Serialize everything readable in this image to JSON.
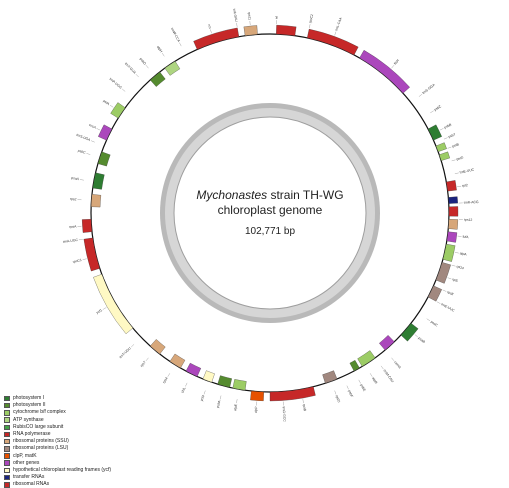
{
  "title_species": "Mychonastes",
  "title_strain": " strain TH-WG",
  "subtitle": "chloroplast genome",
  "genome_size": "102,771 bp",
  "colors": {
    "photosystem_i": "#2e7d32",
    "photosystem_ii": "#558b2f",
    "cytochrome": "#9ccc65",
    "atp": "#aed581",
    "rubisco": "#43a047",
    "rna_pol": "#c62828",
    "rps": "#d7a77a",
    "rpl": "#a1887f",
    "clpp": "#e65100",
    "other": "#ab47bc",
    "ycf": "#fff9c4",
    "trna": "#1a237e",
    "rrna": "#c62828"
  },
  "legend": [
    {
      "label": "photosystem I",
      "color": "#2e7d32"
    },
    {
      "label": "photosystem II",
      "color": "#558b2f"
    },
    {
      "label": "cytochrome b/f complex",
      "color": "#9ccc65"
    },
    {
      "label": "ATP synthase",
      "color": "#aed581"
    },
    {
      "label": "RubisCO large subunit",
      "color": "#43a047"
    },
    {
      "label": "RNA polymerase",
      "color": "#c62828"
    },
    {
      "label": "ribosomal proteins (SSU)",
      "color": "#d7a77a"
    },
    {
      "label": "ribosomal proteins (LSU)",
      "color": "#a1887f"
    },
    {
      "label": "clpP, matK",
      "color": "#e65100"
    },
    {
      "label": "other genes",
      "color": "#ab47bc"
    },
    {
      "label": "hypothetical chloroplast reading frames (ycf)",
      "color": "#fff9c4"
    },
    {
      "label": "transfer RNAs",
      "color": "#1a237e"
    },
    {
      "label": "ribosomal RNAs",
      "color": "#c62828"
    }
  ],
  "genes": [
    {
      "a1": 2,
      "a2": 8,
      "out": true,
      "cat": "rrna",
      "label": "rrl"
    },
    {
      "a1": 12,
      "a2": 28,
      "out": true,
      "cat": "rrna",
      "label": "rpoC2"
    },
    {
      "a1": 30,
      "a2": 48,
      "out": true,
      "cat": "other",
      "label": "ftsH"
    },
    {
      "a1": 62,
      "a2": 66,
      "out": true,
      "cat": "photosystem_i",
      "label": "psbB"
    },
    {
      "a1": 68,
      "a2": 70,
      "out": true,
      "cat": "cytochrome",
      "label": "petB"
    },
    {
      "a1": 71,
      "a2": 73,
      "out": true,
      "cat": "cytochrome",
      "label": "petD"
    },
    {
      "a1": 80,
      "a2": 83,
      "out": true,
      "cat": "rrna",
      "label": "rpl"
    },
    {
      "a1": 85,
      "a2": 87,
      "out": true,
      "cat": "trna",
      "label": "trnR"
    },
    {
      "a1": 88,
      "a2": 91,
      "out": true,
      "cat": "rrna",
      "label": "rrs"
    },
    {
      "a1": 92,
      "a2": 95,
      "out": true,
      "cat": "rps",
      "label": "rps12"
    },
    {
      "a1": 96,
      "a2": 99,
      "out": true,
      "cat": "other",
      "label": "tufA"
    },
    {
      "a1": 100,
      "a2": 105,
      "out": true,
      "cat": "cytochrome",
      "label": "atpA"
    },
    {
      "a1": 106,
      "a2": 112,
      "out": true,
      "cat": "rpl",
      "label": "rpl14"
    },
    {
      "a1": 114,
      "a2": 118,
      "out": true,
      "cat": "rpl",
      "label": "rpl5"
    },
    {
      "a1": 128,
      "a2": 133,
      "out": true,
      "cat": "photosystem_i",
      "label": "psaB"
    },
    {
      "a1": 136,
      "a2": 140,
      "out": false,
      "cat": "other",
      "label": "cemA"
    },
    {
      "a1": 144,
      "a2": 149,
      "out": false,
      "cat": "cytochrome",
      "label": "atpB"
    },
    {
      "a1": 150,
      "a2": 152,
      "out": false,
      "cat": "photosystem_ii",
      "label": "psbE"
    },
    {
      "a1": 158,
      "a2": 162,
      "out": false,
      "cat": "rpl",
      "label": "rpl20"
    },
    {
      "a1": 166,
      "a2": 180,
      "out": true,
      "cat": "rrna",
      "label": "rpoB"
    },
    {
      "a1": 182,
      "a2": 186,
      "out": true,
      "cat": "clpp",
      "label": "clpP"
    },
    {
      "a1": 188,
      "a2": 192,
      "out": false,
      "cat": "cytochrome",
      "label": "atpE"
    },
    {
      "a1": 193,
      "a2": 197,
      "out": false,
      "cat": "photosystem_ii",
      "label": "psbA"
    },
    {
      "a1": 199,
      "a2": 202,
      "out": false,
      "cat": "ycf",
      "label": "ycf4"
    },
    {
      "a1": 204,
      "a2": 208,
      "out": false,
      "cat": "other",
      "label": "chlL"
    },
    {
      "a1": 210,
      "a2": 214,
      "out": false,
      "cat": "rps",
      "label": "rps4"
    },
    {
      "a1": 218,
      "a2": 222,
      "out": false,
      "cat": "rps",
      "label": "rps7"
    },
    {
      "a1": 230,
      "a2": 250,
      "out": true,
      "cat": "ycf",
      "label": "ycf1"
    },
    {
      "a1": 252,
      "a2": 262,
      "out": true,
      "cat": "rrna",
      "label": "rpoC1"
    },
    {
      "a1": 264,
      "a2": 268,
      "out": true,
      "cat": "rrna",
      "label": "rpoA"
    },
    {
      "a1": 272,
      "a2": 276,
      "out": false,
      "cat": "rps",
      "label": "rps2"
    },
    {
      "a1": 278,
      "a2": 283,
      "out": false,
      "cat": "photosystem_i",
      "label": "psaA"
    },
    {
      "a1": 286,
      "a2": 290,
      "out": false,
      "cat": "photosystem_ii",
      "label": "psbC"
    },
    {
      "a1": 294,
      "a2": 298,
      "out": true,
      "cat": "other",
      "label": "ccsA"
    },
    {
      "a1": 302,
      "a2": 306,
      "out": true,
      "cat": "cytochrome",
      "label": "petA"
    },
    {
      "a1": 318,
      "a2": 322,
      "out": false,
      "cat": "photosystem_ii",
      "label": "psbD"
    },
    {
      "a1": 324,
      "a2": 328,
      "out": false,
      "cat": "atp",
      "label": "atpH"
    },
    {
      "a1": 336,
      "a2": 350,
      "out": true,
      "cat": "rrna",
      "label": "rrn"
    },
    {
      "a1": 352,
      "a2": 356,
      "out": true,
      "cat": "rps",
      "label": "rps11"
    }
  ],
  "labels": [
    {
      "ang": 2,
      "text": "rrl"
    },
    {
      "ang": 12,
      "text": "rpoC2"
    },
    {
      "ang": 20,
      "text": "trnL-CAA"
    },
    {
      "ang": 40,
      "text": "ftsH"
    },
    {
      "ang": 52,
      "text": "trnS-GGA"
    },
    {
      "ang": 58,
      "text": "psbZ"
    },
    {
      "ang": 64,
      "text": "psbB"
    },
    {
      "ang": 67,
      "text": "psbT"
    },
    {
      "ang": 70,
      "text": "petB"
    },
    {
      "ang": 74,
      "text": "petD"
    },
    {
      "ang": 78,
      "text": "trnE-UUC"
    },
    {
      "ang": 82,
      "text": "rpl2"
    },
    {
      "ang": 87,
      "text": "trnR-ACG"
    },
    {
      "ang": 92,
      "text": "rps12"
    },
    {
      "ang": 97,
      "text": "tufA"
    },
    {
      "ang": 102,
      "text": "atpA"
    },
    {
      "ang": 106,
      "text": "rpl14"
    },
    {
      "ang": 110,
      "text": "rpl5"
    },
    {
      "ang": 114,
      "text": "rps8"
    },
    {
      "ang": 118,
      "text": "trnE-UUC"
    },
    {
      "ang": 124,
      "text": "psaC"
    },
    {
      "ang": 130,
      "text": "psaB"
    },
    {
      "ang": 140,
      "text": "cemA"
    },
    {
      "ang": 144,
      "text": "trnM-CAU"
    },
    {
      "ang": 148,
      "text": "atpB"
    },
    {
      "ang": 152,
      "text": "psbE"
    },
    {
      "ang": 156,
      "text": "psbF"
    },
    {
      "ang": 160,
      "text": "rpl20"
    },
    {
      "ang": 170,
      "text": "rpoB"
    },
    {
      "ang": 176,
      "text": "trnG-GCC"
    },
    {
      "ang": 184,
      "text": "clpP"
    },
    {
      "ang": 190,
      "text": "atpE"
    },
    {
      "ang": 195,
      "text": "psbA"
    },
    {
      "ang": 200,
      "text": "ycf4"
    },
    {
      "ang": 206,
      "text": "chlL"
    },
    {
      "ang": 212,
      "text": "rps4"
    },
    {
      "ang": 220,
      "text": "rps7"
    },
    {
      "ang": 226,
      "text": "trnT-UGU"
    },
    {
      "ang": 240,
      "text": "ycf1"
    },
    {
      "ang": 256,
      "text": "rpoC1"
    },
    {
      "ang": 262,
      "text": "trnA-UGC"
    },
    {
      "ang": 266,
      "text": "rpoA"
    },
    {
      "ang": 274,
      "text": "rps2"
    },
    {
      "ang": 280,
      "text": "psaA"
    },
    {
      "ang": 288,
      "text": "psbC"
    },
    {
      "ang": 292,
      "text": "trnS-UGA"
    },
    {
      "ang": 296,
      "text": "ccsA"
    },
    {
      "ang": 304,
      "text": "petA"
    },
    {
      "ang": 310,
      "text": "trnP-UGG"
    },
    {
      "ang": 316,
      "text": "trnY-GUA"
    },
    {
      "ang": 320,
      "text": "psbD"
    },
    {
      "ang": 326,
      "text": "atpH"
    },
    {
      "ang": 332,
      "text": "trnW-CCA"
    },
    {
      "ang": 342,
      "text": "rrn"
    },
    {
      "ang": 350,
      "text": "trnI-GAU"
    },
    {
      "ang": 354,
      "text": "rps11"
    }
  ]
}
